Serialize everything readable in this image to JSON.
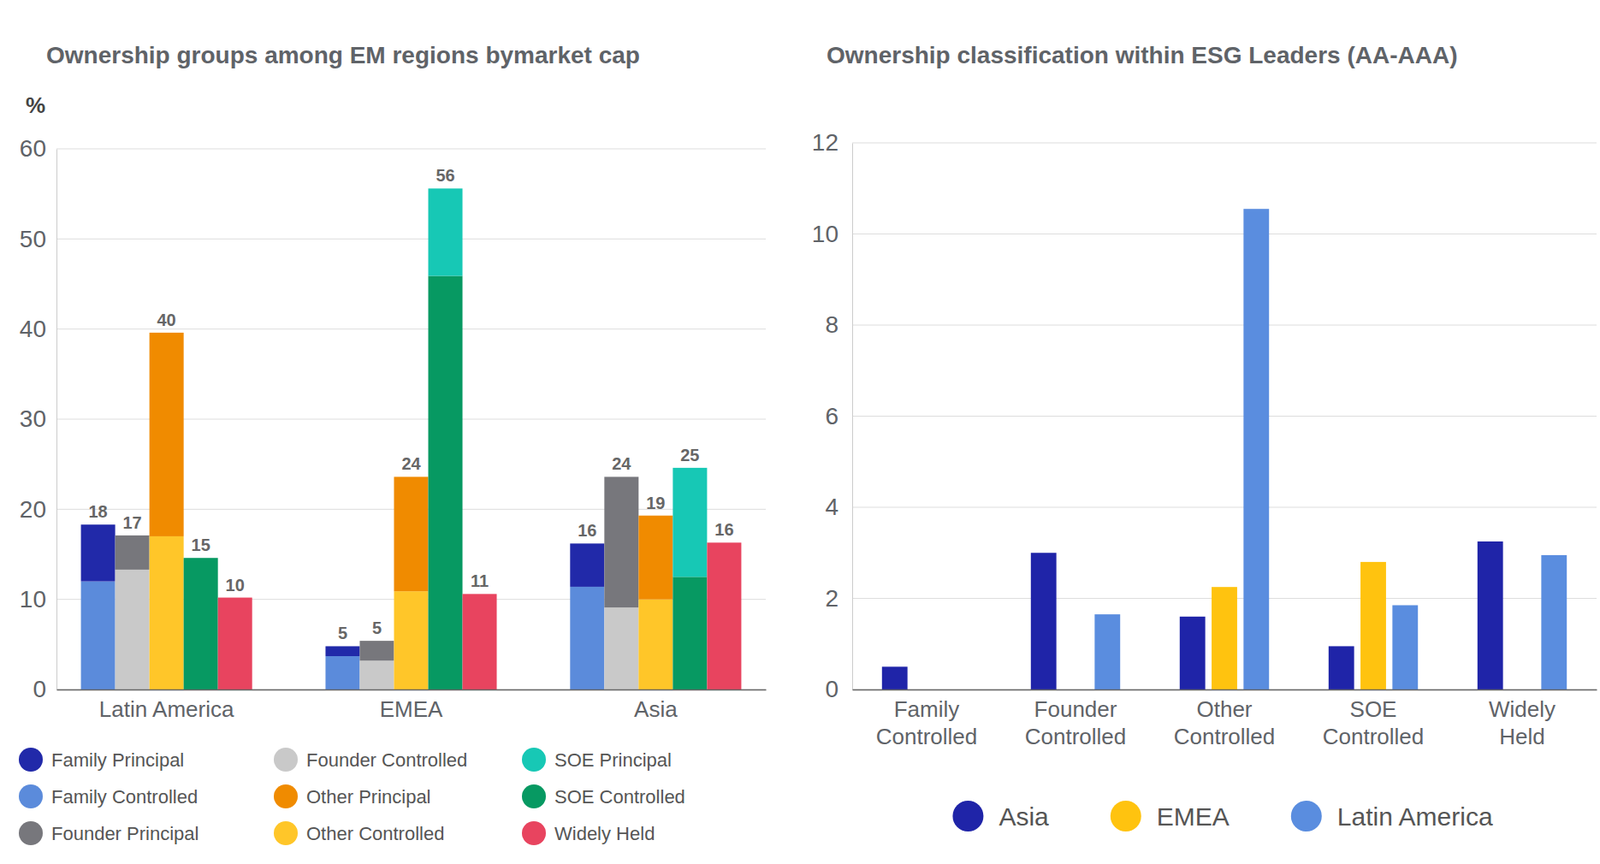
{
  "chart_data": [
    {
      "type": "bar",
      "stacked": true,
      "title": "Ownership groups among EM regions bymarket cap",
      "ylabel": "%",
      "categories": [
        "Latin America",
        "EMEA",
        "Asia"
      ],
      "groups": [
        {
          "series": [
            {
              "name": "Family Principal",
              "color": "#2129a9",
              "values": [
                6.3,
                1.1,
                4.8
              ]
            },
            {
              "name": "Family Controlled",
              "color": "#5b8bdb",
              "values": [
                12,
                3.7,
                11.4
              ]
            }
          ],
          "totals": [
            18,
            5,
            16
          ]
        },
        {
          "series": [
            {
              "name": "Founder Principal",
              "color": "#77777c",
              "values": [
                3.8,
                2.2,
                14.5
              ]
            },
            {
              "name": "Founder Controlled",
              "color": "#c9c9c9",
              "values": [
                13.3,
                3.2,
                9.1
              ]
            }
          ],
          "totals": [
            17,
            5,
            24
          ]
        },
        {
          "series": [
            {
              "name": "Other Principal",
              "color": "#f08b00",
              "values": [
                22.6,
                12.7,
                9.3
              ]
            },
            {
              "name": "Other Controlled",
              "color": "#ffc629",
              "values": [
                17,
                10.9,
                10
              ]
            }
          ],
          "totals": [
            40,
            24,
            19
          ]
        },
        {
          "series": [
            {
              "name": "SOE Principal",
              "color": "#17c8b5",
              "values": [
                0,
                9.7,
                12.1
              ]
            },
            {
              "name": "SOE Controlled",
              "color": "#079962",
              "values": [
                14.6,
                45.9,
                12.5
              ]
            }
          ],
          "totals": [
            15,
            56,
            25
          ]
        },
        {
          "series": [
            {
              "name": "Widely Held",
              "color": "#e8445f",
              "values": [
                10.2,
                10.6,
                16.3
              ]
            }
          ],
          "totals": [
            10,
            11,
            16
          ]
        }
      ],
      "ylim": [
        0,
        60
      ],
      "yticks": [
        0,
        10,
        20,
        30,
        40,
        50,
        60
      ],
      "grid": true,
      "legend": "bottom"
    },
    {
      "type": "bar",
      "title": "Ownership classification within ESG Leaders (AA-AAA)",
      "categories": [
        "Family Controlled",
        "Founder Controlled",
        "Other Controlled",
        "SOE Controlled",
        "Widely Held"
      ],
      "series": [
        {
          "name": "Asia",
          "color": "#1f24a8",
          "values": [
            0.5,
            3,
            1.6,
            0.95,
            3.25
          ]
        },
        {
          "name": "EMEA",
          "color": "#ffc30f",
          "values": [
            0,
            0,
            2.25,
            2.8,
            0
          ]
        },
        {
          "name": "Latin America",
          "color": "#5a8ddf",
          "values": [
            0,
            1.65,
            10.55,
            1.85,
            2.95
          ]
        }
      ],
      "ylim": [
        0,
        12
      ],
      "yticks": [
        0,
        2,
        4,
        6,
        8,
        10,
        12
      ],
      "grid": true,
      "legend": "bottom"
    }
  ]
}
